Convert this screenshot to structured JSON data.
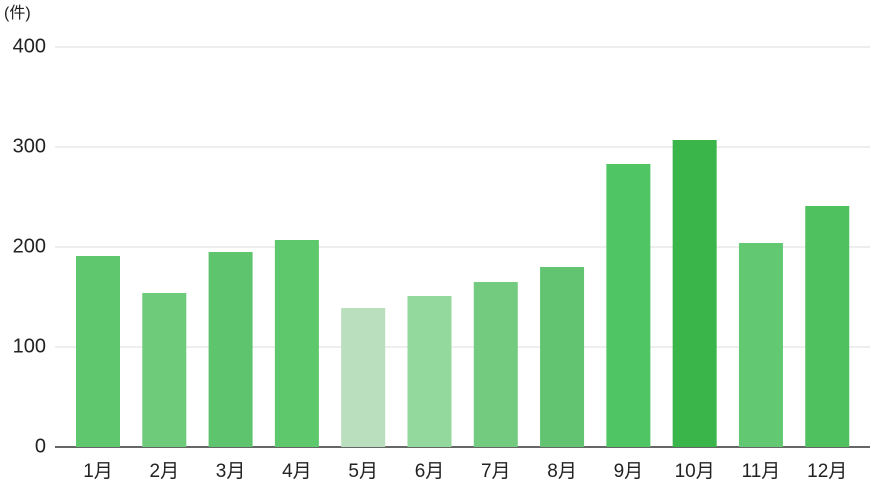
{
  "chart_data": {
    "type": "bar",
    "unit_label": "(件)",
    "categories": [
      "1月",
      "2月",
      "3月",
      "4月",
      "5月",
      "6月",
      "7月",
      "8月",
      "9月",
      "10月",
      "11月",
      "12月"
    ],
    "values": [
      191,
      154,
      195,
      207,
      139,
      151,
      165,
      180,
      283,
      307,
      204,
      241
    ],
    "colors": [
      "#5fc86e",
      "#6ecb7a",
      "#5fc46e",
      "#5ec86c",
      "#b9dfbe",
      "#93d99d",
      "#73cb80",
      "#62c470",
      "#50c563",
      "#3ab54a",
      "#62c972",
      "#4fc15f"
    ],
    "ylim": [
      0,
      400
    ],
    "yticks": [
      0,
      100,
      200,
      300,
      400
    ],
    "grid": true
  }
}
